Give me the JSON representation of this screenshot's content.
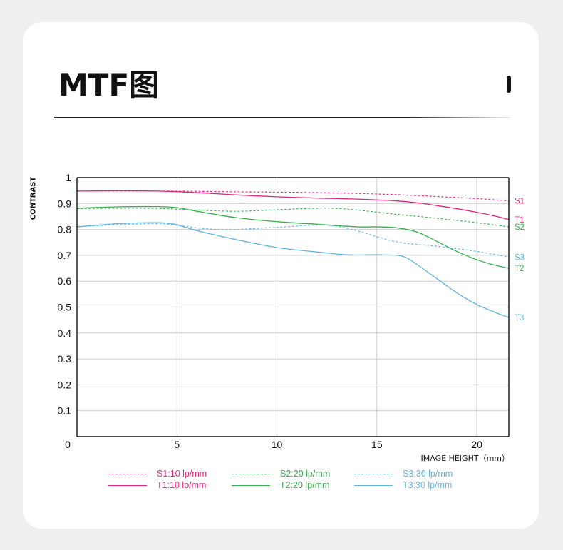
{
  "header": {
    "title": "MTF图"
  },
  "colors": {
    "s1": "#e8207e",
    "t1": "#e8207e",
    "s2": "#35b04b",
    "t2": "#35b04b",
    "s3": "#5fb3de",
    "t3": "#5fb3de",
    "axis": "#111111",
    "grid": "#cccccc"
  },
  "chart_data": {
    "type": "line",
    "ylabel": "CONTRAST",
    "xlabel": "IMAGE HEIGHT（mm）",
    "xlim": [
      0,
      21.6
    ],
    "ylim": [
      0,
      1
    ],
    "x_ticks": [
      0,
      5,
      10,
      15,
      20
    ],
    "y_ticks": [
      0.1,
      0.2,
      0.3,
      0.4,
      0.5,
      0.6,
      0.7,
      0.8,
      0.9,
      1
    ],
    "x_tick_labels": [
      "0",
      "5",
      "10",
      "15",
      "20"
    ],
    "y_tick_labels": [
      "0.1",
      "0.2",
      "0.3",
      "0.4",
      "0.5",
      "0.6",
      "0.7",
      "0.8",
      "0.9",
      "1"
    ],
    "grid": true,
    "series": [
      {
        "name": "S1:10 lp/mm",
        "end_label": "S1",
        "color": "#e8207e",
        "dash": true,
        "x": [
          0,
          2,
          4,
          6,
          8,
          10,
          12,
          14,
          16,
          18,
          20,
          21.6
        ],
        "y": [
          0.948,
          0.948,
          0.948,
          0.947,
          0.945,
          0.944,
          0.942,
          0.939,
          0.934,
          0.927,
          0.919,
          0.91
        ]
      },
      {
        "name": "T1:10 lp/mm",
        "end_label": "T1",
        "color": "#e8207e",
        "dash": false,
        "x": [
          0,
          2,
          4,
          6,
          8,
          10,
          12,
          14,
          16,
          17,
          18,
          19,
          20,
          21,
          21.6
        ],
        "y": [
          0.948,
          0.949,
          0.948,
          0.942,
          0.933,
          0.926,
          0.921,
          0.917,
          0.91,
          0.903,
          0.892,
          0.88,
          0.866,
          0.85,
          0.838
        ]
      },
      {
        "name": "S2:20 lp/mm",
        "end_label": "S2",
        "color": "#35b04b",
        "dash": true,
        "x": [
          0,
          2,
          4,
          6,
          8,
          10,
          12,
          13,
          14,
          16,
          18,
          20,
          21.6
        ],
        "y": [
          0.88,
          0.882,
          0.881,
          0.875,
          0.87,
          0.876,
          0.882,
          0.881,
          0.875,
          0.858,
          0.843,
          0.826,
          0.81
        ]
      },
      {
        "name": "T2:20 lp/mm",
        "end_label": "T2",
        "color": "#35b04b",
        "dash": false,
        "x": [
          0,
          2,
          4,
          5,
          6,
          8,
          10,
          12,
          14,
          15,
          16,
          17,
          18,
          19,
          20,
          21,
          21.6
        ],
        "y": [
          0.882,
          0.887,
          0.888,
          0.884,
          0.87,
          0.845,
          0.83,
          0.82,
          0.81,
          0.81,
          0.806,
          0.79,
          0.754,
          0.715,
          0.683,
          0.66,
          0.65
        ]
      },
      {
        "name": "S3:30 lp/mm",
        "end_label": "S3",
        "color": "#5fb3de",
        "dash": true,
        "x": [
          0,
          2,
          4,
          5,
          6,
          7,
          8,
          10,
          12,
          13,
          14,
          15,
          16,
          17,
          18,
          20,
          21.6
        ],
        "y": [
          0.81,
          0.818,
          0.822,
          0.816,
          0.806,
          0.8,
          0.8,
          0.808,
          0.817,
          0.812,
          0.795,
          0.772,
          0.752,
          0.742,
          0.735,
          0.715,
          0.693
        ]
      },
      {
        "name": "T3:30 lp/mm",
        "end_label": "T3",
        "color": "#5fb3de",
        "dash": false,
        "x": [
          0,
          2,
          4,
          5,
          6,
          8,
          10,
          12,
          13.5,
          15,
          16,
          16.5,
          17,
          18,
          19,
          20,
          21,
          21.6
        ],
        "y": [
          0.81,
          0.822,
          0.826,
          0.818,
          0.795,
          0.76,
          0.73,
          0.713,
          0.702,
          0.702,
          0.7,
          0.69,
          0.665,
          0.61,
          0.555,
          0.51,
          0.477,
          0.46
        ]
      }
    ],
    "legend": {
      "placement": "bottom",
      "columns": 3
    }
  }
}
